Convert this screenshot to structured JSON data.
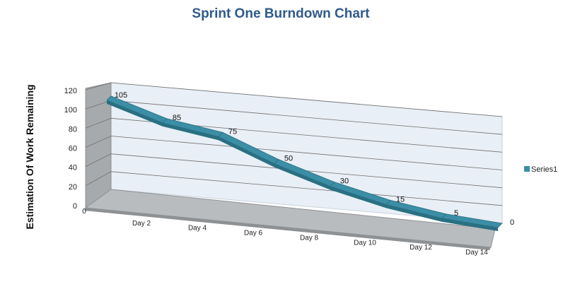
{
  "chart_data": {
    "type": "line",
    "title": "Sprint One Burndown Chart",
    "xlabel": "",
    "ylabel": "Estimation Of Work Remaining",
    "categories": [
      "0",
      "Day 2",
      "Day 4",
      "Day 6",
      "Day 8",
      "Day 10",
      "Day 12",
      "Day 14"
    ],
    "series": [
      {
        "name": "Series1",
        "values": [
          105,
          85,
          75,
          50,
          30,
          15,
          5,
          0
        ]
      }
    ],
    "ylim": [
      0,
      120
    ],
    "yticks": [
      0,
      20,
      40,
      60,
      80,
      100,
      120
    ],
    "grid": true,
    "legend": "right",
    "data_labels": true,
    "colors": {
      "series": "#3b8ea5",
      "series_dark": "#2a6f82",
      "wall": "#e9eff6",
      "floor": "#b9bcbf",
      "side": "#a7aaad"
    }
  }
}
